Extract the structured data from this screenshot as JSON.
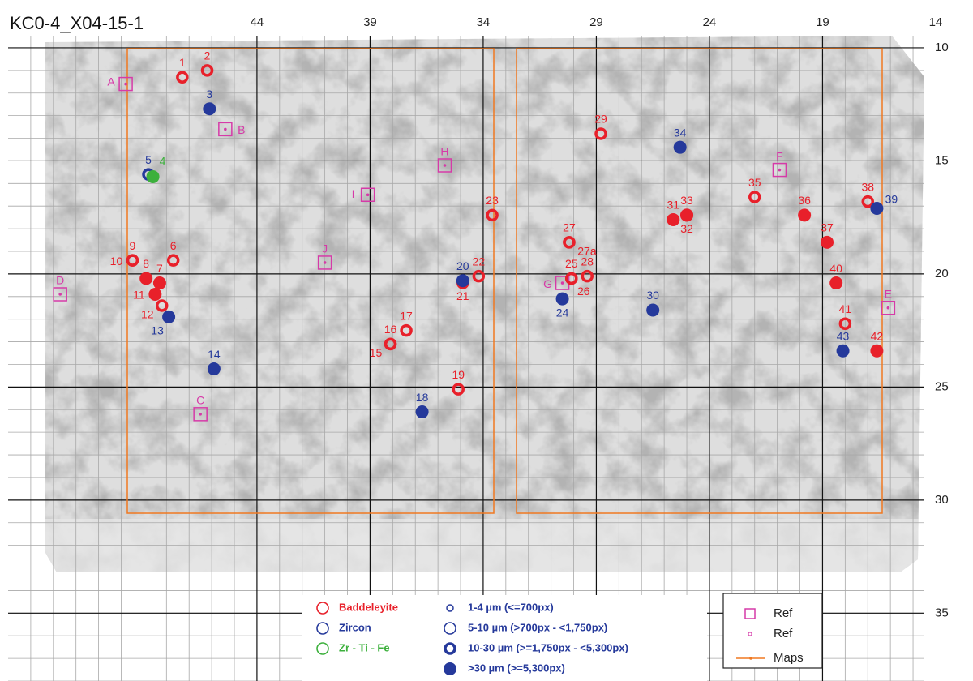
{
  "chart_data": {
    "type": "scatter",
    "title": "KC0-4_X04-15-1",
    "xlim": [
      55,
      14.5
    ],
    "ylim": [
      38,
      9.5
    ],
    "xticks": [
      44,
      39,
      34,
      29,
      24,
      19,
      14
    ],
    "yticks": [
      10,
      15,
      20,
      25,
      30,
      35
    ],
    "minor_xticks": [
      15,
      16,
      17,
      18,
      19,
      20,
      21,
      22,
      23,
      24,
      25,
      26,
      27,
      28,
      29,
      30,
      31,
      32,
      33,
      34,
      35,
      36,
      37,
      38,
      39,
      40,
      41,
      42,
      43,
      44,
      45,
      46,
      47,
      48,
      49,
      50,
      51,
      52,
      53,
      54
    ],
    "minor_yticks": [
      10,
      11,
      12,
      13,
      14,
      15,
      16,
      17,
      18,
      19,
      20,
      21,
      22,
      23,
      24,
      25,
      26,
      27,
      28,
      29,
      30,
      31,
      32,
      33,
      34,
      35,
      36,
      37,
      38
    ],
    "grid": true,
    "size_legend": [
      "1-4 µm (<=700px)",
      "5-10 µm (>700px - <1,750px)",
      "10-30 µm (>=1,750px - <5,300px)",
      ">30 µm (>=5,300px)"
    ],
    "series": [
      {
        "name": "Baddeleyite",
        "color": "#e8202a",
        "sizes": [
          {
            "x": [],
            "values": [],
            "labels": []
          },
          {
            "x": [],
            "values": [],
            "labels": []
          },
          {
            "x": [
              47.3,
              46.2,
              28.8,
              33.6,
              30.2,
              30.2,
              22.0,
              17.0,
              49.5,
              49.5,
              47.7,
              48.2,
              34.9,
              34.2,
              30.1,
              30.1,
              29.4,
              38.1,
              38.1,
              37.4,
              35.1,
              18.0
            ],
            "values": [
              11.3,
              11.0,
              13.8,
              17.4,
              18.6,
              18.6,
              16.6,
              16.8,
              19.4,
              19.4,
              19.4,
              21.4,
              20.4,
              20.1,
              20.2,
              20.2,
              20.1,
              23.1,
              23.1,
              22.5,
              25.1,
              22.2
            ],
            "labels": [
              "1",
              "2",
              "29",
              "23",
              "27",
              "27a",
              "35",
              "38",
              "9",
              "10",
              "6",
              "12",
              "21",
              "22",
              "25",
              "26",
              "28",
              "16",
              "15",
              "17",
              "19",
              "41"
            ]
          },
          {
            "x": [
              25.6,
              25.0,
              25.0,
              19.8,
              18.8,
              48.9,
              48.3,
              48.5,
              18.4,
              16.6
            ],
            "values": [
              17.6,
              17.4,
              17.4,
              17.4,
              18.6,
              20.2,
              20.4,
              20.9,
              20.4,
              23.4
            ],
            "labels": [
              "31",
              "33",
              "32",
              "36",
              "37",
              "8",
              "7",
              "11",
              "40",
              "42"
            ]
          }
        ]
      },
      {
        "name": "Zircon",
        "color": "#25399b",
        "sizes": [
          {
            "x": [],
            "values": [],
            "labels": []
          },
          {
            "x": [],
            "values": [],
            "labels": []
          },
          {
            "x": [
              48.8
            ],
            "values": [
              15.6
            ],
            "labels": [
              "5"
            ]
          },
          {
            "x": [
              46.1,
              25.3,
              16.6,
              47.9,
              45.9,
              36.7,
              30.5,
              26.5,
              18.1,
              34.9
            ],
            "values": [
              12.7,
              14.4,
              17.1,
              21.9,
              24.2,
              26.1,
              21.1,
              21.6,
              23.4,
              20.3
            ],
            "labels": [
              "3",
              "34",
              "39",
              "13",
              "14",
              "18",
              "24",
              "30",
              "43",
              "20"
            ]
          }
        ]
      },
      {
        "name": "Zr - Ti - Fe",
        "color": "#3cb03c",
        "sizes": [
          {
            "x": [],
            "values": [],
            "labels": []
          },
          {
            "x": [],
            "values": [],
            "labels": []
          },
          {
            "x": [],
            "values": [],
            "labels": []
          },
          {
            "x": [
              48.6
            ],
            "values": [
              15.7
            ],
            "labels": [
              "4"
            ]
          }
        ]
      }
    ],
    "refs": {
      "color": "#d63aa8",
      "labels": [
        "A",
        "B",
        "C",
        "D",
        "E",
        "F",
        "G",
        "H",
        "I",
        "J"
      ],
      "x": [
        49.8,
        45.4,
        46.5,
        52.7,
        16.1,
        20.9,
        30.5,
        35.7,
        39.1,
        41.0
      ],
      "values": [
        11.6,
        13.6,
        26.2,
        20.9,
        21.5,
        15.4,
        20.4,
        15.2,
        16.5,
        19.5
      ]
    },
    "ref_legend": [
      "Ref",
      "Ref",
      "Maps"
    ]
  }
}
